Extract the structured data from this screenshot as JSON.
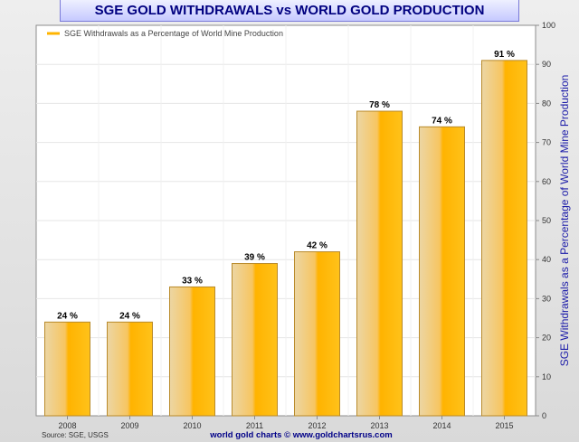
{
  "chart_data": {
    "type": "bar",
    "title": "SGE GOLD WITHDRAWALS vs WORLD GOLD PRODUCTION",
    "ylabel": "SGE Withdrawals as a Percentage of World Mine Production",
    "xlabel": "",
    "categories": [
      "2008",
      "2009",
      "2010",
      "2011",
      "2012",
      "2013",
      "2014",
      "2015"
    ],
    "series": [
      {
        "name": "SGE Withdrawals as a Percentage of World Mine Production",
        "values": [
          24,
          24,
          33,
          39,
          42,
          78,
          74,
          91
        ],
        "data_labels": [
          "24 %",
          "24 %",
          "33 %",
          "39 %",
          "42 %",
          "78 %",
          "74 %",
          "91 %"
        ]
      }
    ],
    "ylim": [
      0,
      100
    ],
    "yticks": [
      0,
      10,
      20,
      30,
      40,
      50,
      60,
      70,
      80,
      90,
      100
    ],
    "y_axis_side": "right",
    "grid": true,
    "legend_position": "top-left",
    "bar_color": "#ffb400",
    "title_color": "#000080"
  },
  "source": "Source: SGE, USGS",
  "watermark": "world gold charts © www.goldchartsrus.com"
}
